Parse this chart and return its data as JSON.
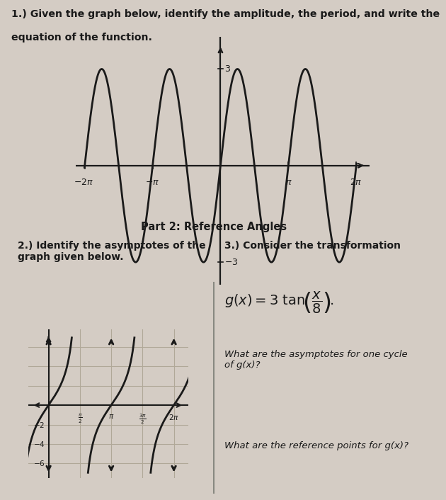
{
  "bg_color": "#d4ccc4",
  "text_color": "#1a1a1a",
  "title1": "1.) Given the graph below, identify the amplitude, the period, and write the",
  "title1b": "equation of the function.",
  "section_header": "Part 2: Reference Angles",
  "q2_title": "2.) Identify the asymptotes of the\ngraph given below.",
  "q3_title": "3.) Consider the transformation",
  "q3_formula": "$g(x) = 3\\ \\mathrm{tan}\\!\\left(\\dfrac{x}{8}\\right)\\!.$",
  "q3_q1": "What are the asymptotes for one cycle\nof g(x)?",
  "q3_q2": "What are the reference points for g(x)?",
  "sine_amplitude": 3,
  "sine_color": "#1a1a1a",
  "sine_linewidth": 2.0,
  "tan_color": "#1a1a1a",
  "tan_linewidth": 2.0,
  "grid_color": "#b0a898",
  "axis_color": "#1a1a1a",
  "divider_color": "#888880"
}
